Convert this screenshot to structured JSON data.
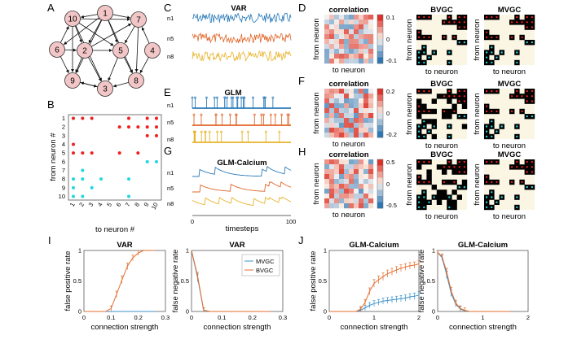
{
  "panel_labels": {
    "A": "A",
    "B": "B",
    "C": "C",
    "D": "D",
    "E": "E",
    "F": "F",
    "G": "G",
    "H": "H",
    "I": "I",
    "J": "J"
  },
  "colors": {
    "node_fill": "#f2c6c6",
    "red": "#ee2222",
    "cyan": "#22d6e0",
    "blue": "#2a7ab8",
    "orange": "#e0662a",
    "yellow": "#e8b32a",
    "mvgc": "#3b93c9",
    "bvgc": "#e36e2e",
    "cream": "#faf6e3",
    "black": "#000000"
  },
  "network": {
    "nodes": [
      "1",
      "2",
      "3",
      "4",
      "5",
      "6",
      "7",
      "8",
      "9",
      "10"
    ],
    "edges": [
      [
        "1",
        "10"
      ],
      [
        "1",
        "7"
      ],
      [
        "1",
        "6"
      ],
      [
        "1",
        "2"
      ],
      [
        "1",
        "5"
      ],
      [
        "1",
        "8"
      ],
      [
        "1",
        "9"
      ],
      [
        "10",
        "7"
      ],
      [
        "10",
        "2"
      ],
      [
        "10",
        "5"
      ],
      [
        "10",
        "3"
      ],
      [
        "10",
        "9"
      ],
      [
        "2",
        "7"
      ],
      [
        "2",
        "3"
      ],
      [
        "2",
        "9"
      ],
      [
        "2",
        "5"
      ],
      [
        "6",
        "9"
      ],
      [
        "6",
        "2"
      ],
      [
        "7",
        "5"
      ],
      [
        "7",
        "8"
      ],
      [
        "5",
        "3"
      ],
      [
        "5",
        "8"
      ],
      [
        "8",
        "3"
      ],
      [
        "9",
        "3"
      ],
      [
        "4",
        "7"
      ],
      [
        "4",
        "8"
      ],
      [
        "3",
        "9"
      ],
      [
        "6",
        "10"
      ]
    ]
  },
  "adjacency": {
    "ylabel": "from neuron #",
    "xlabel": "to neuron #",
    "ticks": [
      "1",
      "2",
      "3",
      "4",
      "5",
      "6",
      "7",
      "8",
      "9",
      "10"
    ],
    "excitatory": [
      [
        1,
        1
      ],
      [
        1,
        2
      ],
      [
        1,
        3
      ],
      [
        1,
        7
      ],
      [
        1,
        9
      ],
      [
        1,
        10
      ],
      [
        2,
        6
      ],
      [
        2,
        7
      ],
      [
        2,
        8
      ],
      [
        2,
        9
      ],
      [
        2,
        10
      ],
      [
        3,
        9
      ],
      [
        3,
        10
      ],
      [
        4,
        1
      ],
      [
        5,
        1
      ],
      [
        5,
        2
      ],
      [
        5,
        3
      ],
      [
        5,
        6
      ],
      [
        5,
        8
      ]
    ],
    "inhibitory": [
      [
        6,
        9
      ],
      [
        6,
        10
      ],
      [
        7,
        2
      ],
      [
        8,
        1
      ],
      [
        8,
        2
      ],
      [
        8,
        4
      ],
      [
        8,
        7
      ],
      [
        9,
        1
      ],
      [
        9,
        3
      ],
      [
        10,
        1
      ],
      [
        10,
        2
      ],
      [
        10,
        7
      ]
    ]
  },
  "traces": {
    "var_title": "VAR",
    "glm_title": "GLM",
    "calcium_title": "GLM-Calcium",
    "labels": [
      "n1",
      "n5",
      "n8"
    ],
    "xlabel": "timesteps",
    "xticks": [
      "0",
      "100"
    ]
  },
  "matrices": {
    "corr_title": "correlation",
    "bvgc_title": "BVGC",
    "mvgc_title": "MVGC",
    "ylabel": "from neuron",
    "xlabel": "to neuron",
    "cbar_D": [
      "0.1",
      "0",
      "-0.1"
    ],
    "cbar_F": [
      "0.2",
      "0",
      "-0.2"
    ],
    "cbar_H": [
      "0.5",
      "0",
      "-0.5"
    ]
  },
  "chart_data": [
    {
      "type": "line",
      "title": "VAR",
      "xlabel": "connection strength",
      "ylabel": "false positive rate",
      "xlim": [
        0,
        0.3
      ],
      "ylim": [
        0,
        1
      ],
      "xticks": [
        "0",
        "0.1",
        "0.2",
        "0.3"
      ],
      "yticks": [
        "0",
        "0.5",
        "1"
      ],
      "x": [
        0.0,
        0.02,
        0.04,
        0.06,
        0.08,
        0.1,
        0.12,
        0.14,
        0.16,
        0.18,
        0.2,
        0.22,
        0.24,
        0.26
      ],
      "series": [
        {
          "name": "MVGC",
          "values": [
            0,
            0,
            0,
            0,
            0,
            0,
            0,
            0,
            0,
            0,
            0,
            0,
            0,
            0
          ]
        },
        {
          "name": "BVGC",
          "values": [
            0,
            0,
            0,
            0,
            0,
            0.05,
            0.28,
            0.52,
            0.74,
            0.88,
            0.96,
            1.0,
            1.0,
            1.0
          ]
        }
      ]
    },
    {
      "type": "line",
      "title": "VAR",
      "xlabel": "connection strength",
      "ylabel": "false negative rate",
      "xlim": [
        0,
        0.3
      ],
      "ylim": [
        0,
        1
      ],
      "xticks": [
        "0",
        "0.1",
        "0.2",
        "0.3"
      ],
      "yticks": [
        "0",
        "0.5",
        "1"
      ],
      "legend": [
        "MVGC",
        "BVGC"
      ],
      "x": [
        0.0,
        0.02,
        0.04,
        0.06,
        0.08,
        0.1,
        0.12,
        0.14,
        0.16,
        0.18,
        0.2,
        0.22,
        0.24,
        0.26
      ],
      "series": [
        {
          "name": "MVGC",
          "values": [
            1.0,
            0.55,
            0.02,
            0,
            0,
            0,
            0,
            0,
            0,
            0,
            0,
            0,
            0,
            0
          ]
        },
        {
          "name": "BVGC",
          "values": [
            1.0,
            0.58,
            0.02,
            0,
            0,
            0,
            0,
            0,
            0,
            0,
            0,
            0,
            0,
            0
          ]
        }
      ]
    },
    {
      "type": "line",
      "title": "GLM-Calcium",
      "xlabel": "connection strength",
      "ylabel": "false positive rate",
      "xlim": [
        0,
        2
      ],
      "ylim": [
        0,
        1
      ],
      "xticks": [
        "0",
        "1",
        "2"
      ],
      "yticks": [
        "0",
        "0.5",
        "1"
      ],
      "x": [
        0.0,
        0.2,
        0.4,
        0.6,
        0.7,
        0.8,
        0.9,
        1.0,
        1.1,
        1.2,
        1.3,
        1.4,
        1.5,
        1.6,
        1.7,
        1.8,
        1.9,
        2.0
      ],
      "series": [
        {
          "name": "MVGC",
          "values": [
            0,
            0,
            0,
            0,
            0.02,
            0.06,
            0.1,
            0.13,
            0.15,
            0.17,
            0.18,
            0.19,
            0.2,
            0.21,
            0.22,
            0.24,
            0.25,
            0.27
          ]
        },
        {
          "name": "BVGC",
          "values": [
            0,
            0,
            0,
            0,
            0.04,
            0.15,
            0.33,
            0.46,
            0.52,
            0.57,
            0.62,
            0.65,
            0.68,
            0.71,
            0.73,
            0.75,
            0.76,
            0.78
          ]
        }
      ]
    },
    {
      "type": "line",
      "title": "GLM-Calcium",
      "xlabel": "connection strength",
      "ylabel": "false negative rate",
      "xlim": [
        0,
        2
      ],
      "ylim": [
        0,
        1
      ],
      "xticks": [
        "0",
        "1",
        "2"
      ],
      "yticks": [
        "0",
        "0.5",
        "1"
      ],
      "x": [
        0.0,
        0.1,
        0.2,
        0.3,
        0.4,
        0.5,
        0.6,
        0.7,
        0.8,
        0.9,
        1.0,
        1.2,
        1.4,
        1.6
      ],
      "series": [
        {
          "name": "MVGC",
          "values": [
            0.97,
            0.88,
            0.6,
            0.3,
            0.12,
            0.04,
            0.01,
            0,
            0,
            0,
            0,
            0,
            0,
            0
          ]
        },
        {
          "name": "BVGC",
          "values": [
            0.97,
            0.9,
            0.65,
            0.34,
            0.14,
            0.05,
            0.02,
            0,
            0,
            0,
            0,
            0,
            0,
            0
          ]
        }
      ]
    }
  ]
}
